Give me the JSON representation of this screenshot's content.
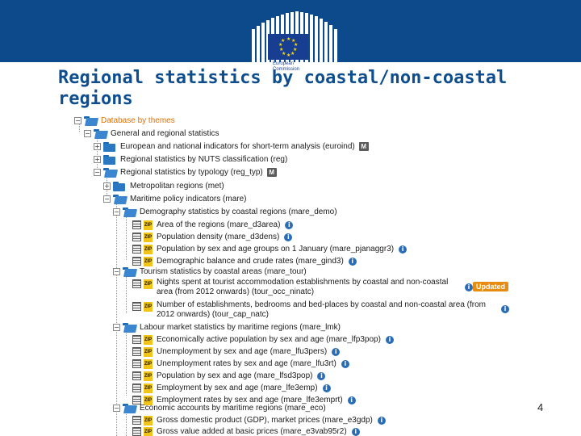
{
  "header": {
    "logo_line1": "European",
    "logo_line2": "Commission"
  },
  "title": "Regional statistics by coastal/non-coastal regions",
  "tree": {
    "root": "Database by themes",
    "general": "General and regional statistics",
    "euroind": "European and national indicators for short-term analysis (euroind)",
    "reg": "Regional statistics by NUTS classification (reg)",
    "reg_typ": "Regional statistics by typology (reg_typ)",
    "met": "Metropolitan regions (met)",
    "mare": "Maritime policy indicators (mare)",
    "mare_demo": "Demography statistics by coastal regions (mare_demo)",
    "mare_demo_items": [
      "Area of the regions (mare_d3area)",
      "Population density (mare_d3dens)",
      "Population by sex and age groups on 1 January (mare_pjanaggr3)",
      "Demographic balance and crude rates (mare_gind3)"
    ],
    "mare_tour": "Tourism statistics by coastal areas (mare_tour)",
    "mare_tour_items": [
      "Nights spent at tourist accommodation establishments by coastal and non-coastal area (from 2012 onwards) (tour_occ_ninatc)",
      "Number of establishments, bedrooms and bed-places by coastal and non-coastal area (from 2012 onwards) (tour_cap_natc)"
    ],
    "updated_badge": "Updated",
    "mare_lmk": "Labour market statistics by maritime regions (mare_lmk)",
    "mare_lmk_items": [
      "Economically active population by sex and age (mare_lfp3pop)",
      "Unemployment by sex and age (mare_lfu3pers)",
      "Unemployment rates by sex and age (mare_lfu3rt)",
      "Population by sex and age (mare_lfsd3pop)",
      "Employment by sex and age (mare_lfe3emp)",
      "Employment rates by sex and age (mare_lfe3emprt)"
    ],
    "mare_eco": "Economic accounts by maritime regions (mare_eco)",
    "mare_eco_items": [
      "Gross domestic product (GDP), market prices (mare_e3gdp)",
      "Gross value added at basic prices (mare_e3vab95r2)"
    ],
    "m_badge": "M",
    "zip_label": "ZIP",
    "info_glyph": "i",
    "toggle_open": "−",
    "toggle_closed": "+"
  },
  "page_number": "4",
  "colors": {
    "header_blue": "#0d4a8c",
    "title_blue": "#0f4e8e",
    "folder_blue": "#2a78c2",
    "root_orange": "#e07000",
    "updated_orange": "#e88b11",
    "zip_yellow": "#f0c419"
  }
}
